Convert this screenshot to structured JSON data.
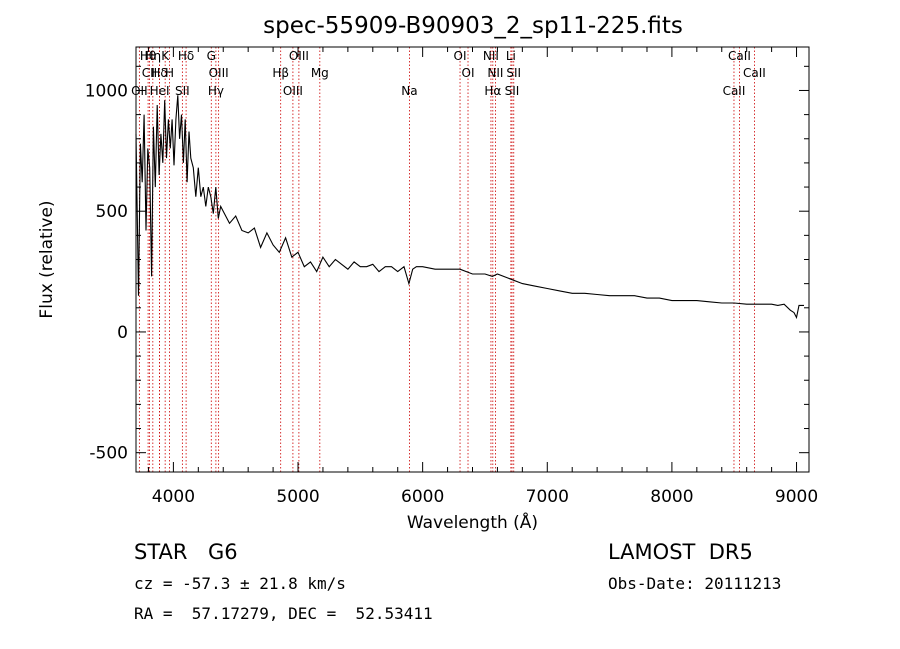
{
  "chart_data": {
    "type": "line",
    "title": "spec-55909-B90903_2_sp11-225.fits",
    "xlabel": "Wavelength (Å)",
    "ylabel": "Flux (relative)",
    "xlim": [
      3700,
      9100
    ],
    "ylim": [
      -580,
      1180
    ],
    "xticks": [
      4000,
      5000,
      6000,
      7000,
      8000,
      9000
    ],
    "yticks": [
      -500,
      0,
      500,
      1000
    ],
    "grid": false,
    "series": [
      {
        "x": [
          3700,
          3720,
          3735,
          3750,
          3765,
          3780,
          3795,
          3810,
          3825,
          3840,
          3855,
          3870,
          3885,
          3900,
          3915,
          3930,
          3945,
          3960,
          3975,
          3990,
          4005,
          4020,
          4035,
          4050,
          4065,
          4080,
          4095,
          4110,
          4125,
          4140,
          4160,
          4180,
          4200,
          4220,
          4240,
          4260,
          4280,
          4300,
          4320,
          4340,
          4360,
          4380,
          4400,
          4450,
          4500,
          4550,
          4600,
          4650,
          4700,
          4750,
          4800,
          4850,
          4900,
          4950,
          5000,
          5050,
          5100,
          5150,
          5200,
          5250,
          5300,
          5350,
          5400,
          5450,
          5500,
          5550,
          5600,
          5650,
          5700,
          5750,
          5800,
          5850,
          5890,
          5920,
          5950,
          6000,
          6100,
          6200,
          6300,
          6400,
          6500,
          6560,
          6600,
          6700,
          6800,
          6900,
          7000,
          7100,
          7200,
          7300,
          7400,
          7500,
          7600,
          7700,
          7800,
          7900,
          8000,
          8100,
          8200,
          8300,
          8400,
          8500,
          8600,
          8700,
          8800,
          8850,
          8900,
          8950,
          8980,
          9000,
          9020,
          9040,
          9060
        ],
        "y": [
          820,
          150,
          780,
          620,
          900,
          420,
          760,
          680,
          230,
          850,
          600,
          940,
          650,
          820,
          700,
          960,
          720,
          880,
          760,
          880,
          690,
          880,
          980,
          800,
          900,
          700,
          880,
          620,
          830,
          720,
          680,
          560,
          680,
          560,
          600,
          520,
          600,
          560,
          490,
          600,
          470,
          520,
          500,
          450,
          480,
          420,
          410,
          430,
          350,
          410,
          360,
          330,
          390,
          310,
          330,
          270,
          290,
          250,
          310,
          270,
          300,
          280,
          260,
          290,
          270,
          270,
          280,
          250,
          270,
          270,
          250,
          270,
          200,
          260,
          270,
          270,
          260,
          260,
          260,
          240,
          240,
          230,
          240,
          220,
          200,
          190,
          180,
          170,
          160,
          160,
          155,
          150,
          150,
          150,
          140,
          140,
          130,
          130,
          130,
          125,
          120,
          120,
          115,
          115,
          115,
          110,
          115,
          90,
          80,
          60,
          110,
          110,
          110
        ]
      }
    ],
    "emission_lines": [
      {
        "label": "Hθ",
        "x": 3797
      },
      {
        "label": "CII",
        "x": 3808
      },
      {
        "label": "OII",
        "x": 3727
      },
      {
        "label": "Hη",
        "x": 3835
      },
      {
        "label": "Hδ",
        "x": 3889
      },
      {
        "label": "HeI",
        "x": 3889
      },
      {
        "label": "K",
        "x": 3934
      },
      {
        "label": "H",
        "x": 3969
      },
      {
        "label": "SII",
        "x": 4072
      },
      {
        "label": "Hδ",
        "x": 4102
      },
      {
        "label": "OIII",
        "x": 4363
      },
      {
        "label": "Hγ",
        "x": 4341
      },
      {
        "label": "G",
        "x": 4304
      },
      {
        "label": "Hβ",
        "x": 4861
      },
      {
        "label": "OIII",
        "x": 4959
      },
      {
        "label": "OIII",
        "x": 5007
      },
      {
        "label": "Mg",
        "x": 5175
      },
      {
        "label": "Na",
        "x": 5894
      },
      {
        "label": "OI",
        "x": 6300
      },
      {
        "label": "OI",
        "x": 6364
      },
      {
        "label": "Hα",
        "x": 6563
      },
      {
        "label": "NII",
        "x": 6548
      },
      {
        "label": "NII",
        "x": 6584
      },
      {
        "label": "SII",
        "x": 6717
      },
      {
        "label": "Li",
        "x": 6708
      },
      {
        "label": "SII",
        "x": 6731
      },
      {
        "label": "CaII",
        "x": 8498
      },
      {
        "label": "CaII",
        "x": 8542
      },
      {
        "label": "CaII",
        "x": 8662
      }
    ],
    "line_color": "#000000",
    "marker_color": "#cc0000"
  },
  "info": {
    "object_class": "STAR",
    "subclass": "G6",
    "survey": "LAMOST  DR5",
    "redshift": "cz = -57.3 ± 21.8 km/s",
    "obs_date": "Obs-Date: 20111213",
    "coords": "RA =  57.17279, DEC =  52.53411"
  }
}
